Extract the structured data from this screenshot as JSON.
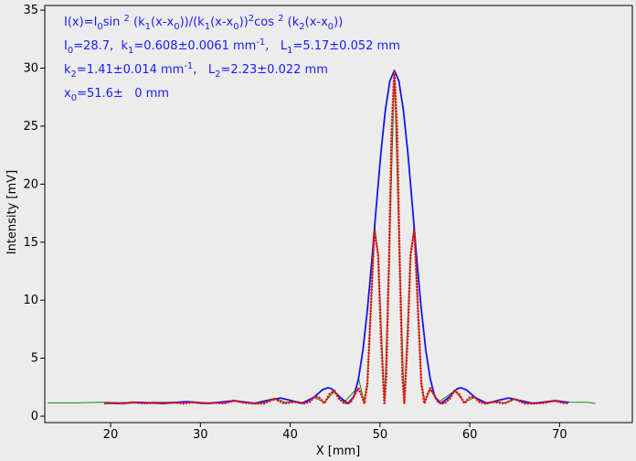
{
  "chart_data": {
    "type": "line",
    "xlabel": "X [mm]",
    "ylabel": "Intensity [mV]",
    "xlim": [
      12.67,
      78.1
    ],
    "ylim": [
      -0.55,
      35.4
    ],
    "xticks": [
      20,
      30,
      40,
      50,
      60,
      70
    ],
    "yticks": [
      0,
      5,
      10,
      15,
      20,
      25,
      30,
      35
    ],
    "annotations": [
      [
        {
          "t": "I(x)=I"
        },
        {
          "sub": "0"
        },
        {
          "t": "sin "
        },
        {
          "sup": "2"
        },
        {
          "t": " (k"
        },
        {
          "sub": "1"
        },
        {
          "t": "(x-x"
        },
        {
          "sub": "0"
        },
        {
          "t": "))/(k"
        },
        {
          "sub": "1"
        },
        {
          "t": "(x-x"
        },
        {
          "sub": "0"
        },
        {
          "t": "))"
        },
        {
          "sup": "2"
        },
        {
          "t": "cos "
        },
        {
          "sup": "2"
        },
        {
          "t": " (k"
        },
        {
          "sub": "2"
        },
        {
          "t": "(x-x"
        },
        {
          "sub": "0"
        },
        {
          "t": "))"
        }
      ],
      [
        {
          "t": "I"
        },
        {
          "sub": "0"
        },
        {
          "t": "=28.7,  k"
        },
        {
          "sub": "1"
        },
        {
          "t": "=0.608±0.0061 mm"
        },
        {
          "sup": "-1"
        },
        {
          "t": ",   L"
        },
        {
          "sub": "1"
        },
        {
          "t": "=5.17±0.052 mm"
        }
      ],
      [
        {
          "t": "k"
        },
        {
          "sub": "2"
        },
        {
          "t": "=1.41±0.014 mm"
        },
        {
          "sup": "-1"
        },
        {
          "t": ",   L"
        },
        {
          "sub": "2"
        },
        {
          "t": "=2.23±0.022 mm"
        }
      ],
      [
        {
          "t": "x"
        },
        {
          "sub": "0"
        },
        {
          "t": "=51.6±   0 mm"
        }
      ]
    ],
    "series": [
      {
        "color": "#1a8a1a",
        "style": "line",
        "x": [
          13,
          16,
          19,
          22,
          25,
          28,
          31,
          34,
          36,
          38.3,
          39.5,
          40.5,
          41.6,
          42.7,
          43.8,
          44.9,
          46,
          47.2,
          47.6,
          48.2,
          48.6,
          49.0,
          49.4,
          49.8,
          50.5,
          51.0,
          51.6,
          52.2,
          52.7,
          53.4,
          53.8,
          54.2,
          54.6,
          55.0,
          55.6,
          56.5,
          58.3,
          59.4,
          60.5,
          61.6,
          62.7,
          63.9,
          65,
          66.1,
          68.3,
          69.4,
          71,
          73,
          74
        ],
        "values": [
          1.15,
          1.15,
          1.2,
          1.15,
          1.2,
          1.2,
          1.15,
          1.3,
          1.15,
          1.55,
          1.2,
          1.3,
          1.15,
          1.6,
          1.2,
          2.1,
          1.2,
          2.2,
          3.3,
          1.3,
          2.9,
          9.5,
          16.5,
          13.8,
          1.3,
          13,
          29.5,
          13,
          1.3,
          13.8,
          16.5,
          9.5,
          2.9,
          1.3,
          2.3,
          1.2,
          2.2,
          1.2,
          1.6,
          1.15,
          1.25,
          1.15,
          1.45,
          1.15,
          1.2,
          1.3,
          1.2,
          1.2,
          1.1
        ]
      },
      {
        "color": "#1515ee",
        "style": "line",
        "x": [
          19.4,
          20.6,
          23.1,
          25.75,
          28.5,
          30.9,
          32.4,
          33.7,
          34.9,
          36.1,
          37.6,
          38.9,
          40.1,
          41.26,
          42.6,
          43.6,
          44.2,
          44.6,
          45.6,
          46.43,
          47.1,
          47.6,
          48.1,
          48.6,
          49.1,
          49.6,
          50.1,
          50.6,
          51.1,
          51.6,
          52.1,
          52.6,
          53.1,
          53.6,
          54.1,
          54.6,
          55.1,
          55.6,
          56.1,
          56.77,
          57.6,
          58.6,
          59,
          59.6,
          60.6,
          61.94,
          63.1,
          64.3,
          65.6,
          67.1,
          68.3,
          69.5,
          70.7,
          71
        ],
        "values": [
          1.15,
          1.1,
          1.19,
          1.1,
          1.25,
          1.1,
          1.22,
          1.34,
          1.22,
          1.1,
          1.35,
          1.57,
          1.35,
          1.1,
          1.6,
          2.28,
          2.45,
          2.38,
          1.6,
          1.1,
          1.7,
          3.2,
          5.7,
          9.2,
          13.5,
          18.2,
          22.7,
          26.4,
          28.9,
          29.8,
          28.9,
          26.4,
          22.7,
          18.2,
          13.5,
          9.2,
          5.7,
          3.2,
          1.7,
          1.1,
          1.6,
          2.38,
          2.45,
          2.28,
          1.6,
          1.1,
          1.35,
          1.57,
          1.35,
          1.1,
          1.22,
          1.34,
          1.22,
          1.2
        ]
      },
      {
        "color": "#e81010",
        "style": "dotted",
        "x": [
          19.4,
          20.3,
          21.4,
          22.5,
          23.6,
          24.8,
          25.9,
          27.0,
          28.1,
          29.2,
          30.3,
          31.5,
          32.6,
          33.8,
          34.9,
          36.0,
          37.1,
          38.23,
          39.34,
          40.46,
          41.57,
          42.2,
          42.69,
          43.2,
          43.8,
          44.4,
          44.92,
          45.4,
          46.03,
          46.7,
          47.2,
          47.6,
          47.9,
          48.26,
          48.6,
          49.0,
          49.37,
          49.8,
          50.1,
          50.49,
          50.7,
          51.0,
          51.3,
          51.6,
          51.9,
          52.2,
          52.5,
          52.71,
          53.1,
          53.4,
          53.83,
          54.2,
          54.6,
          54.94,
          55.3,
          55.6,
          56.0,
          56.5,
          57.17,
          57.8,
          58.28,
          58.8,
          59.4,
          60.0,
          60.51,
          61.0,
          61.63,
          62.74,
          63.86,
          64.97,
          66.1,
          67.2,
          68.3,
          69.4,
          70.6,
          71.0
        ],
        "values": [
          1.1,
          1.12,
          1.1,
          1.2,
          1.1,
          1.15,
          1.1,
          1.18,
          1.1,
          1.2,
          1.1,
          1.15,
          1.1,
          1.33,
          1.15,
          1.1,
          1.1,
          1.5,
          1.1,
          1.23,
          1.1,
          1.25,
          1.67,
          1.63,
          1.1,
          1.92,
          2.2,
          1.53,
          1.1,
          1.16,
          1.9,
          2.4,
          1.9,
          1.1,
          2.85,
          9.7,
          16.0,
          13.9,
          6.9,
          1.1,
          3.4,
          13.2,
          24.7,
          29.8,
          24.7,
          13.2,
          3.4,
          1.1,
          6.9,
          13.9,
          16.0,
          9.7,
          2.85,
          1.1,
          1.9,
          2.4,
          1.9,
          1.16,
          1.1,
          1.53,
          2.2,
          1.92,
          1.1,
          1.63,
          1.67,
          1.25,
          1.1,
          1.23,
          1.1,
          1.5,
          1.1,
          1.1,
          1.15,
          1.33,
          1.1,
          1.12
        ]
      }
    ]
  }
}
